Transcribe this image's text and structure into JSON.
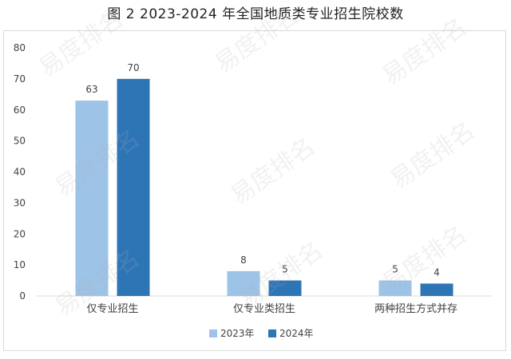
{
  "chart_data": {
    "type": "bar",
    "title": "图 2 2023-2024 年全国地质类专业招生院校数",
    "categories": [
      "仅专业招生",
      "仅专业类招生",
      "两种招生方式并存"
    ],
    "series": [
      {
        "name": "2023年",
        "values": [
          63,
          8,
          5
        ],
        "color": "#9dc3e6"
      },
      {
        "name": "2024年",
        "values": [
          70,
          5,
          4
        ],
        "color": "#2e75b6"
      }
    ],
    "ylim": [
      0,
      80
    ],
    "yticks": [
      0,
      10,
      20,
      30,
      40,
      50,
      60,
      70,
      80
    ],
    "grid": false,
    "legend": "bottom"
  },
  "watermark": "易度排名"
}
